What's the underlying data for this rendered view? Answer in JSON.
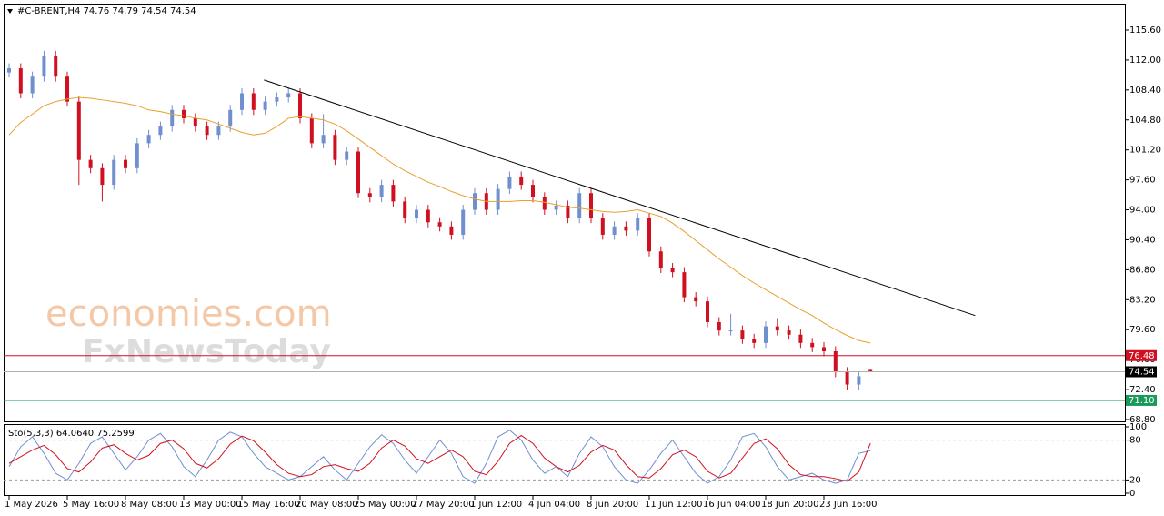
{
  "watermarks": [
    "economies.com",
    "FxNewsToday"
  ],
  "chart_data": [
    {
      "type": "candlestick",
      "title": "#C-BRENT,H4  74.76 74.79 74.54 74.54",
      "up_color": "#6f8fcf",
      "down_color": "#d01020",
      "open": [
        110.5,
        111,
        108,
        110,
        112.5,
        110,
        107,
        100,
        99,
        97,
        100,
        99,
        102,
        103,
        104,
        106,
        105,
        104,
        103,
        104,
        106,
        108,
        106,
        107,
        107.5,
        108,
        105,
        102,
        103,
        100,
        101,
        96,
        95.5,
        97,
        95,
        93,
        94,
        92.5,
        92,
        91,
        94,
        96,
        94,
        96.5,
        98,
        97,
        95.5,
        94,
        94.5,
        93,
        96,
        93,
        91,
        92,
        91.5,
        93,
        89,
        87,
        86.5,
        83.5,
        83,
        80.5,
        79.5,
        79.5,
        78.5,
        78,
        80,
        79.5,
        79,
        78,
        77.5,
        77,
        74.5,
        73,
        74.76
      ],
      "high": [
        111.6,
        111.6,
        110.6,
        113.1,
        113.1,
        110.6,
        107.6,
        100.6,
        99.6,
        100.6,
        100.6,
        102.6,
        103.6,
        104.6,
        106.6,
        106.6,
        105.6,
        104.6,
        104.6,
        106.6,
        108.6,
        108.6,
        107.6,
        108.1,
        108.6,
        108.6,
        105.6,
        105.5,
        103.6,
        101.6,
        101.6,
        96.6,
        97.6,
        97.6,
        95.6,
        94.6,
        94.6,
        93.1,
        92.6,
        94.6,
        96.6,
        96.6,
        97.1,
        98.6,
        98.6,
        97.6,
        96.1,
        95.1,
        95.1,
        96.6,
        96.6,
        93.6,
        92.6,
        92.6,
        93.6,
        93.6,
        89.6,
        87.6,
        87.1,
        84.1,
        83.6,
        81.1,
        81.5,
        80.1,
        79.1,
        80.6,
        81,
        80.1,
        79.6,
        78.6,
        78.1,
        77.6,
        75.1,
        74.6,
        74.79
      ],
      "low": [
        109.9,
        107.4,
        107.4,
        109.4,
        109.4,
        106.4,
        97,
        98.4,
        95,
        96.4,
        98.4,
        98.4,
        101.4,
        102.4,
        103.4,
        104.4,
        103.4,
        102.4,
        102.4,
        103.4,
        105.4,
        105.4,
        105.4,
        106.4,
        106.9,
        104.4,
        101.4,
        101.4,
        99.4,
        99.4,
        95.4,
        94.9,
        94.9,
        94.4,
        92.4,
        92.4,
        91.9,
        91.4,
        90.4,
        90.4,
        93.4,
        93.4,
        93.4,
        95.9,
        96.4,
        94.9,
        93.4,
        93.4,
        92.4,
        92.4,
        92.4,
        90.4,
        90.4,
        90.9,
        90.9,
        88.4,
        86.4,
        85.9,
        82.9,
        82.4,
        79.9,
        78.9,
        78.9,
        77.9,
        77.4,
        77.4,
        78.9,
        78.4,
        77.4,
        76.9,
        76.4,
        73.9,
        72.4,
        72.4,
        74.54
      ],
      "close": [
        111,
        108,
        110,
        112.5,
        110,
        107,
        100,
        99,
        97,
        100,
        99,
        102,
        103,
        104,
        106,
        105,
        104,
        103,
        104,
        106,
        108,
        106,
        107,
        107.5,
        108,
        105,
        102,
        103,
        100,
        101,
        96,
        95.5,
        97,
        95,
        93,
        94,
        92.5,
        92,
        91,
        94,
        96,
        94,
        96.5,
        98,
        97,
        95.5,
        94,
        94.5,
        93,
        96,
        93,
        91,
        92,
        91.5,
        93,
        89,
        87,
        86.5,
        83.5,
        83,
        80.5,
        79.5,
        79.5,
        78.5,
        78,
        80,
        79.5,
        79,
        78,
        77.5,
        77,
        74.5,
        73,
        74,
        74.54
      ],
      "ma_color": "#e8a030",
      "ma_values": [
        103,
        104.5,
        105.5,
        106.5,
        107,
        107.3,
        107.5,
        107.4,
        107.2,
        107,
        106.8,
        106.5,
        106,
        105.8,
        105.5,
        105.3,
        105,
        104.8,
        104.3,
        103.8,
        103.3,
        103,
        103.2,
        104,
        105,
        105.2,
        105,
        104.8,
        104.3,
        103.5,
        102.5,
        101.5,
        100.5,
        99.5,
        98.7,
        98,
        97.3,
        96.8,
        96.2,
        95.7,
        95.3,
        95,
        95,
        95,
        95.1,
        95.1,
        94.9,
        94.6,
        94.3,
        94.2,
        94,
        93.8,
        93.7,
        93.8,
        94,
        93.6,
        93.2,
        92.4,
        91.4,
        90.3,
        89.2,
        88.1,
        87.1,
        86.1,
        85.2,
        84.4,
        83.6,
        82.8,
        82,
        81.3,
        80.4,
        79.6,
        78.9,
        78.3,
        78
      ],
      "trendline": {
        "x": [
          21.9,
          83
        ],
        "y": [
          109.6,
          81.3
        ],
        "color": "#000000"
      },
      "levels": [
        {
          "value": 76.48,
          "color": "#d01020"
        },
        {
          "value": 74.54,
          "color": "#000000"
        },
        {
          "value": 71.1,
          "label": "71.10",
          "color": "#1a9a5a"
        }
      ],
      "xlim": [
        -0.47,
        95.86
      ],
      "ylim": [
        68.58,
        118.77
      ],
      "yticks": [
        {
          "value": 115.6,
          "label": "115.60"
        },
        {
          "value": 112,
          "label": "112.00"
        },
        {
          "value": 108.4,
          "label": "108.40"
        },
        {
          "value": 104.8,
          "label": "104.80"
        },
        {
          "value": 101.2,
          "label": "101.20"
        },
        {
          "value": 97.6,
          "label": "97.60"
        },
        {
          "value": 94,
          "label": "94.00"
        },
        {
          "value": 90.4,
          "label": "90.40"
        },
        {
          "value": 86.8,
          "label": "86.80"
        },
        {
          "value": 83.2,
          "label": "83.20"
        },
        {
          "value": 79.6,
          "label": "79.60"
        },
        {
          "value": 76,
          "label": "76.00"
        },
        {
          "value": 72.4,
          "label": "72.40"
        },
        {
          "value": 68.8,
          "label": "68.80"
        }
      ]
    },
    {
      "type": "line",
      "title": "Sto(5,3,3) 64.0640 75.2599",
      "series": [
        {
          "color": "#6f8fcf",
          "values": [
            40,
            70,
            85,
            60,
            30,
            20,
            45,
            75,
            85,
            60,
            35,
            55,
            80,
            90,
            70,
            40,
            25,
            50,
            80,
            92,
            85,
            60,
            40,
            30,
            20,
            25,
            40,
            55,
            35,
            20,
            45,
            70,
            88,
            75,
            50,
            30,
            55,
            80,
            60,
            25,
            15,
            45,
            85,
            95,
            80,
            50,
            30,
            40,
            25,
            60,
            85,
            70,
            40,
            20,
            15,
            35,
            60,
            80,
            55,
            30,
            15,
            25,
            50,
            85,
            90,
            70,
            40,
            20,
            25,
            30,
            20,
            15,
            20,
            60,
            64.064
          ]
        },
        {
          "color": "#d01020",
          "values": [
            45,
            55,
            65,
            72,
            58,
            37,
            32,
            47,
            68,
            73,
            60,
            50,
            57,
            75,
            80,
            67,
            45,
            38,
            52,
            74,
            86,
            79,
            62,
            43,
            30,
            25,
            28,
            40,
            43,
            37,
            33,
            45,
            68,
            80,
            71,
            52,
            45,
            55,
            65,
            55,
            33,
            28,
            48,
            75,
            87,
            75,
            53,
            40,
            32,
            42,
            62,
            72,
            65,
            43,
            25,
            23,
            37,
            58,
            65,
            55,
            33,
            23,
            30,
            53,
            75,
            82,
            67,
            43,
            28,
            25,
            25,
            22,
            18,
            32,
            75.2599
          ]
        }
      ],
      "levels": [
        80,
        20
      ],
      "xlim": [
        -0.47,
        95.86
      ],
      "ylim": [
        0,
        100
      ],
      "yticks": [
        100,
        80,
        20,
        0
      ],
      "xticks": [
        {
          "value": 0,
          "label": "1 May 2026"
        },
        {
          "value": 5,
          "label": "5 May 16:00"
        },
        {
          "value": 10,
          "label": "8 May 08:00"
        },
        {
          "value": 15,
          "label": "13 May 00:00"
        },
        {
          "value": 20,
          "label": "15 May 16:00"
        },
        {
          "value": 25,
          "label": "20 May 08:00"
        },
        {
          "value": 30,
          "label": "25 May 00:00"
        },
        {
          "value": 35,
          "label": "27 May 20:00"
        },
        {
          "value": 40,
          "label": "1 Jun 12:00"
        },
        {
          "value": 45,
          "label": "4 Jun 04:00"
        },
        {
          "value": 50,
          "label": "8 Jun 20:00"
        },
        {
          "value": 55,
          "label": "11 Jun 12:00"
        },
        {
          "value": 60,
          "label": "16 Jun 04:00"
        },
        {
          "value": 65,
          "label": "18 Jun 20:00"
        },
        {
          "value": 70,
          "label": "23 Jun 16:00"
        }
      ]
    }
  ]
}
